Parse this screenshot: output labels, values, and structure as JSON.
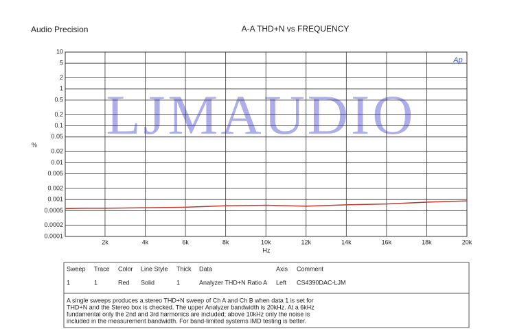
{
  "brand": "Audio Precision",
  "chart_data": {
    "type": "line",
    "title": "A-A THD+N vs FREQUENCY",
    "x_label": "Hz",
    "y_label": "%",
    "watermark": "LJMAUDIO",
    "logo": "Ap",
    "log_y": true,
    "grid": true,
    "xlim": [
      20,
      20000
    ],
    "xticks": [
      {
        "value": 2000,
        "label": "2k"
      },
      {
        "value": 4000,
        "label": "4k"
      },
      {
        "value": 6000,
        "label": "6k"
      },
      {
        "value": 8000,
        "label": "8k"
      },
      {
        "value": 10000,
        "label": "10k"
      },
      {
        "value": 12000,
        "label": "12k"
      },
      {
        "value": 14000,
        "label": "14k"
      },
      {
        "value": 16000,
        "label": "16k"
      },
      {
        "value": 18000,
        "label": "18k"
      },
      {
        "value": 20000,
        "label": "20k"
      }
    ],
    "ylim": [
      0.0001,
      10
    ],
    "yticks": [
      10,
      5,
      2,
      1,
      0.5,
      0.2,
      0.1,
      0.05,
      0.02,
      0.01,
      0.005,
      0.002,
      0.001,
      0.0005,
      0.0002,
      0.0001
    ],
    "x": [
      20,
      1000,
      2000,
      4000,
      6000,
      8000,
      10000,
      12000,
      14000,
      16000,
      18000,
      20000
    ],
    "series": [
      {
        "name": "Analyzer THD+N Ratio A",
        "color": "#c0392b",
        "values": [
          0.00057,
          0.00058,
          0.00058,
          0.0006,
          0.00062,
          0.00068,
          0.0007,
          0.00066,
          0.00072,
          0.00076,
          0.00085,
          0.00092
        ]
      }
    ]
  },
  "legend_table": {
    "headers": [
      "Sweep",
      "Trace",
      "Color",
      "Line Style",
      "Thick",
      "Data",
      "Axis",
      "Comment"
    ],
    "rows": [
      [
        "1",
        "1",
        "Red",
        "Solid",
        "1",
        "Analyzer THD+N Ratio A",
        "Left",
        "CS4390DAC-LJM"
      ]
    ],
    "notes": [
      "A single sweeps produces a stereo THD+N sweep of Ch A and Ch B when data 1 is set for",
      "THD+N and the Stereo box is checked.  The upper Analyzer bandwidth is 20kHz.  At a 6kHz",
      "fundamental only the 2nd and 3rd harmonics are included; above 10kHz only the noise is",
      "included in the measurement bandwidth.  For band-limited systems IMD testing is better."
    ]
  }
}
